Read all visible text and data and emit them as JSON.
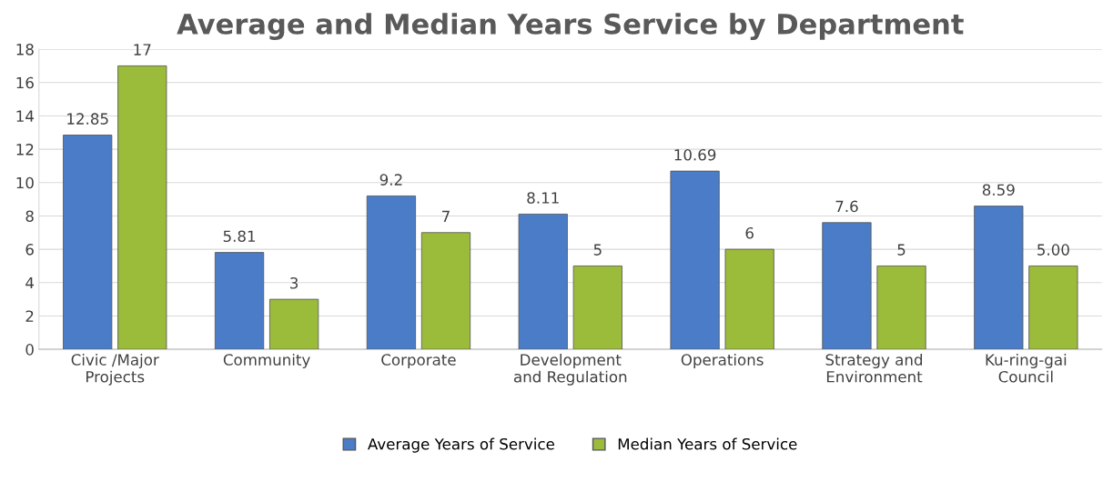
{
  "chart_data": {
    "type": "bar",
    "title": "Average and Median Years Service by Department",
    "categories": [
      "Civic /Major\nProjects",
      "Community",
      "Corporate",
      "Development\nand Regulation",
      "Operations",
      "Strategy and\nEnvironment",
      "Ku-ring-gai\nCouncil"
    ],
    "series": [
      {
        "name": "Average Years of Service",
        "color": "#4a7cc7",
        "values": [
          12.85,
          5.81,
          9.2,
          8.11,
          10.69,
          7.6,
          8.59
        ],
        "value_labels": [
          "12.85",
          "5.81",
          "9.2",
          "8.11",
          "10.69",
          "7.6",
          "8.59"
        ]
      },
      {
        "name": "Median Years of Service",
        "color": "#9bbb3b",
        "values": [
          17,
          3,
          7,
          5,
          6,
          5,
          5
        ],
        "value_labels": [
          "17",
          "3",
          "7",
          "5",
          "6",
          "5",
          "5.00"
        ]
      }
    ],
    "ylim": [
      0,
      18
    ],
    "yticks": [
      0,
      2,
      4,
      6,
      8,
      10,
      12,
      14,
      16,
      18
    ],
    "grid": "y",
    "legend": "bottom"
  }
}
